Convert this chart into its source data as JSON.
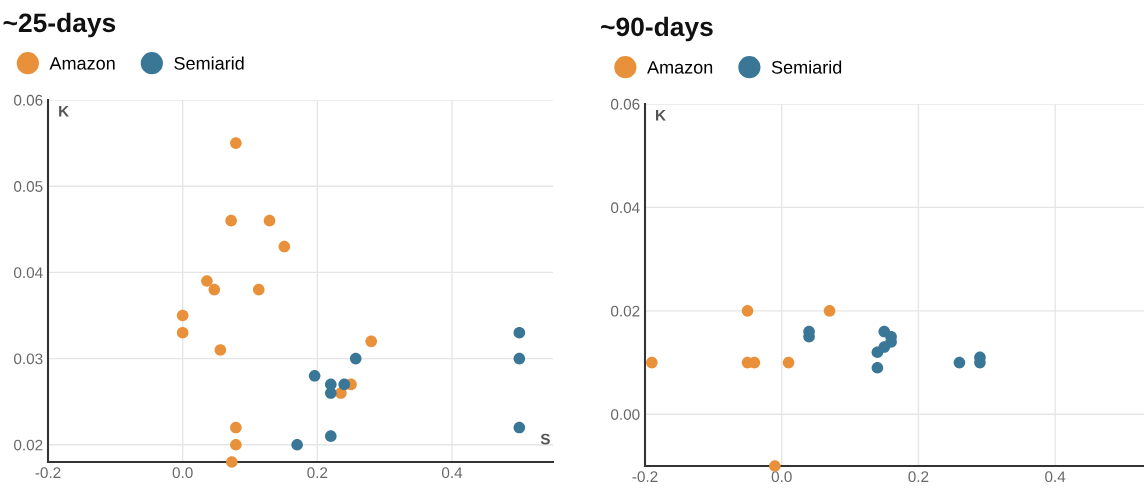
{
  "chart_data": [
    {
      "type": "scatter",
      "title": "~25-days",
      "xlabel": "S",
      "ylabel": "K",
      "xlim": [
        -0.2,
        0.55
      ],
      "ylim": [
        0.018,
        0.06
      ],
      "xticks": [
        -0.2,
        {
          "value": 0,
          "label": "0.0"
        },
        0.2,
        0.4
      ],
      "yticks": [
        0.02,
        0.03,
        0.04,
        0.05,
        0.06
      ],
      "grid": true,
      "legend": "top left",
      "marker": "circle",
      "series": [
        {
          "name": "Amazon",
          "color": "#e8913a",
          "x": [
            0.079,
            0.072,
            0.129,
            0.151,
            0.036,
            0.047,
            0.113,
            0.0,
            0.0,
            0.056,
            0.28,
            0.25,
            0.235,
            0.079,
            0.079,
            0.073
          ],
          "values": [
            0.055,
            0.046,
            0.046,
            0.043,
            0.039,
            0.038,
            0.038,
            0.035,
            0.033,
            0.031,
            0.032,
            0.027,
            0.026,
            0.022,
            0.02,
            0.018
          ]
        },
        {
          "name": "Semiarid",
          "color": "#3a7797",
          "x": [
            0.196,
            0.22,
            0.22,
            0.24,
            0.257,
            0.17,
            0.22,
            0.5,
            0.5,
            0.5
          ],
          "values": [
            0.028,
            0.027,
            0.026,
            0.027,
            0.03,
            0.02,
            0.021,
            0.033,
            0.03,
            0.022
          ]
        }
      ]
    },
    {
      "type": "scatter",
      "title": "~90-days",
      "ylabel": "K",
      "xlim": [
        -0.2,
        0.53
      ],
      "ylim": [
        -0.01,
        0.06
      ],
      "xticks": [
        -0.2,
        {
          "value": 0,
          "label": "0.0"
        },
        0.2,
        0.4
      ],
      "yticks": [
        {
          "value": 0,
          "label": "0.00"
        },
        0.02,
        0.04,
        0.06
      ],
      "grid": true,
      "legend": "top left",
      "marker": "circle",
      "series": [
        {
          "name": "Amazon",
          "color": "#e8913a",
          "x": [
            -0.19,
            -0.05,
            -0.05,
            -0.04,
            0.01,
            0.07,
            -0.01
          ],
          "values": [
            0.01,
            0.02,
            0.01,
            0.01,
            0.01,
            0.02,
            -0.01
          ]
        },
        {
          "name": "Semiarid",
          "color": "#3a7797",
          "x": [
            0.04,
            0.04,
            0.15,
            0.16,
            0.16,
            0.15,
            0.14,
            0.14,
            0.26,
            0.29,
            0.29
          ],
          "values": [
            0.016,
            0.015,
            0.016,
            0.015,
            0.014,
            0.013,
            0.012,
            0.009,
            0.01,
            0.011,
            0.01
          ]
        }
      ]
    }
  ]
}
